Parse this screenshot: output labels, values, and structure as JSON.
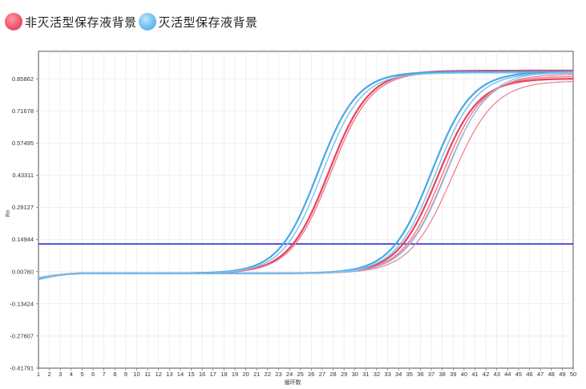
{
  "legend": {
    "items": [
      {
        "label": "非灭活型保存液背景",
        "color": "#f0566b"
      },
      {
        "label": "灭活型保存液背景",
        "color": "#6fbef0"
      }
    ]
  },
  "chart_data": {
    "type": "line",
    "xlabel": "循环数",
    "ylabel": "Rn",
    "x_ticks": [
      1,
      2,
      3,
      4,
      5,
      6,
      7,
      8,
      9,
      10,
      11,
      12,
      13,
      14,
      15,
      16,
      17,
      18,
      19,
      20,
      21,
      22,
      23,
      24,
      25,
      26,
      27,
      28,
      29,
      30,
      31,
      32,
      33,
      34,
      35,
      36,
      37,
      38,
      39,
      40,
      41,
      42,
      43,
      44,
      45,
      46,
      47,
      48,
      49,
      50
    ],
    "xlim": [
      1,
      50
    ],
    "y_tick_labels": [
      "0.85862",
      "0.71678",
      "0.57495",
      "0.43311",
      "0.29127",
      "0.14944",
      "0.00760",
      "-0.13424",
      "-0.27607",
      "-0.41791"
    ],
    "ylim": [
      -0.41791,
      0.98
    ],
    "grid": true,
    "threshold": {
      "value": 0.1302,
      "color": "#1d1dd6"
    },
    "colors": {
      "red": "#e8425a",
      "red_light": "#ee7b8d",
      "blue": "#4aa8e6",
      "blue_light": "#7cc3ee"
    },
    "curve_model": {
      "form": "baseline + plateau / (1 + exp(-(x - midpoint) / slope))"
    },
    "series": [
      {
        "group": "red",
        "midpoint": 27.6,
        "slope": 1.85,
        "plateau": 0.895,
        "baseline": 0.0,
        "width": 2.2
      },
      {
        "group": "red",
        "midpoint": 27.8,
        "slope": 1.85,
        "plateau": 0.89,
        "baseline": 0.0,
        "width": 1.4
      },
      {
        "group": "blue",
        "midpoint": 26.6,
        "slope": 1.8,
        "plateau": 0.89,
        "baseline": 0.0,
        "width": 2.2
      },
      {
        "group": "blue",
        "midpoint": 27.0,
        "slope": 1.8,
        "plateau": 0.885,
        "baseline": 0.0,
        "width": 1.4
      },
      {
        "group": "red",
        "midpoint": 37.6,
        "slope": 1.85,
        "plateau": 0.86,
        "baseline": 0.0,
        "width": 2.2
      },
      {
        "group": "red",
        "midpoint": 38.0,
        "slope": 1.85,
        "plateau": 0.87,
        "baseline": 0.0,
        "width": 1.5
      },
      {
        "group": "red",
        "midpoint": 38.3,
        "slope": 1.9,
        "plateau": 0.88,
        "baseline": 0.0,
        "width": 1.2
      },
      {
        "group": "red",
        "midpoint": 38.9,
        "slope": 1.95,
        "plateau": 0.85,
        "baseline": 0.0,
        "width": 1.2
      },
      {
        "group": "blue",
        "midpoint": 37.0,
        "slope": 1.85,
        "plateau": 0.89,
        "baseline": 0.0,
        "width": 2.2
      },
      {
        "group": "blue",
        "midpoint": 37.4,
        "slope": 1.85,
        "plateau": 0.885,
        "baseline": 0.0,
        "width": 1.5
      },
      {
        "group": "blue",
        "midpoint": 38.4,
        "slope": 1.9,
        "plateau": 0.89,
        "baseline": 0.0,
        "width": 1.2
      }
    ]
  }
}
